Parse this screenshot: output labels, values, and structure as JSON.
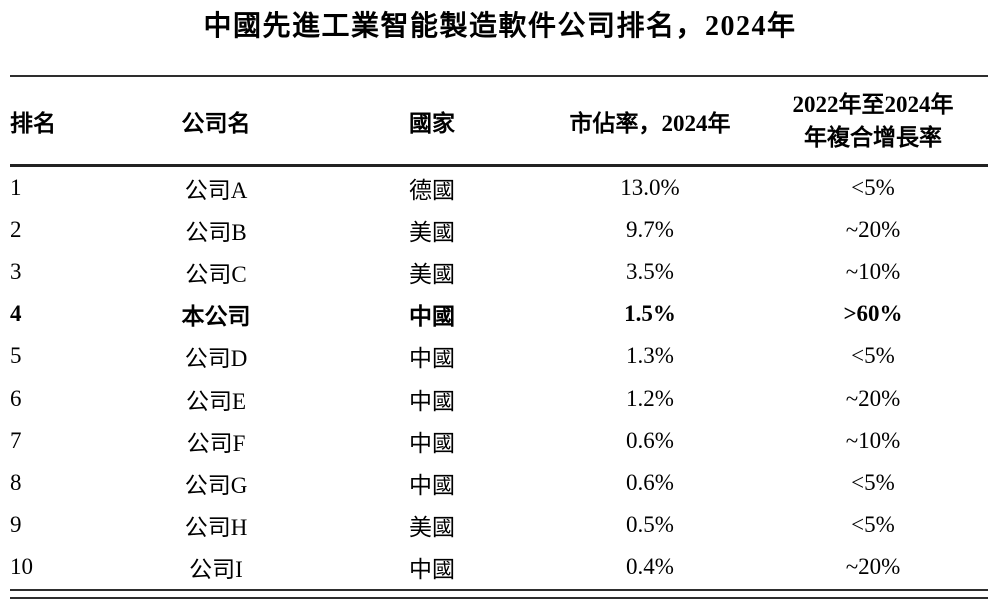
{
  "title": "中國先進工業智能製造軟件公司排名，2024年",
  "colors": {
    "background": "#ffffff",
    "text": "#000000",
    "rule": "#2e2e2e"
  },
  "chart_data": {
    "type": "table",
    "title": "中國先進工業智能製造軟件公司排名，2024年",
    "headers": {
      "rank": "排名",
      "company": "公司名",
      "country": "國家",
      "market_share": "市佔率，2024年",
      "cagr_line1": "2022年至2024年",
      "cagr_line2": "年複合增長率"
    },
    "emphasis": {
      "row_rank": "4",
      "company": "本公司",
      "style": "bold"
    },
    "rows": [
      {
        "rank": "1",
        "company": "公司A",
        "country": "德國",
        "market_share": "13.0%",
        "cagr": "<5%",
        "bold": false
      },
      {
        "rank": "2",
        "company": "公司B",
        "country": "美國",
        "market_share": "9.7%",
        "cagr": "~20%",
        "bold": false
      },
      {
        "rank": "3",
        "company": "公司C",
        "country": "美國",
        "market_share": "3.5%",
        "cagr": "~10%",
        "bold": false
      },
      {
        "rank": "4",
        "company": "本公司",
        "country": "中國",
        "market_share": "1.5%",
        "cagr": ">60%",
        "bold": true
      },
      {
        "rank": "5",
        "company": "公司D",
        "country": "中國",
        "market_share": "1.3%",
        "cagr": "<5%",
        "bold": false
      },
      {
        "rank": "6",
        "company": "公司E",
        "country": "中國",
        "market_share": "1.2%",
        "cagr": "~20%",
        "bold": false
      },
      {
        "rank": "7",
        "company": "公司F",
        "country": "中國",
        "market_share": "0.6%",
        "cagr": "~10%",
        "bold": false
      },
      {
        "rank": "8",
        "company": "公司G",
        "country": "中國",
        "market_share": "0.6%",
        "cagr": "<5%",
        "bold": false
      },
      {
        "rank": "9",
        "company": "公司H",
        "country": "美國",
        "market_share": "0.5%",
        "cagr": "<5%",
        "bold": false
      },
      {
        "rank": "10",
        "company": "公司I",
        "country": "中國",
        "market_share": "0.4%",
        "cagr": "~20%",
        "bold": false
      }
    ]
  }
}
